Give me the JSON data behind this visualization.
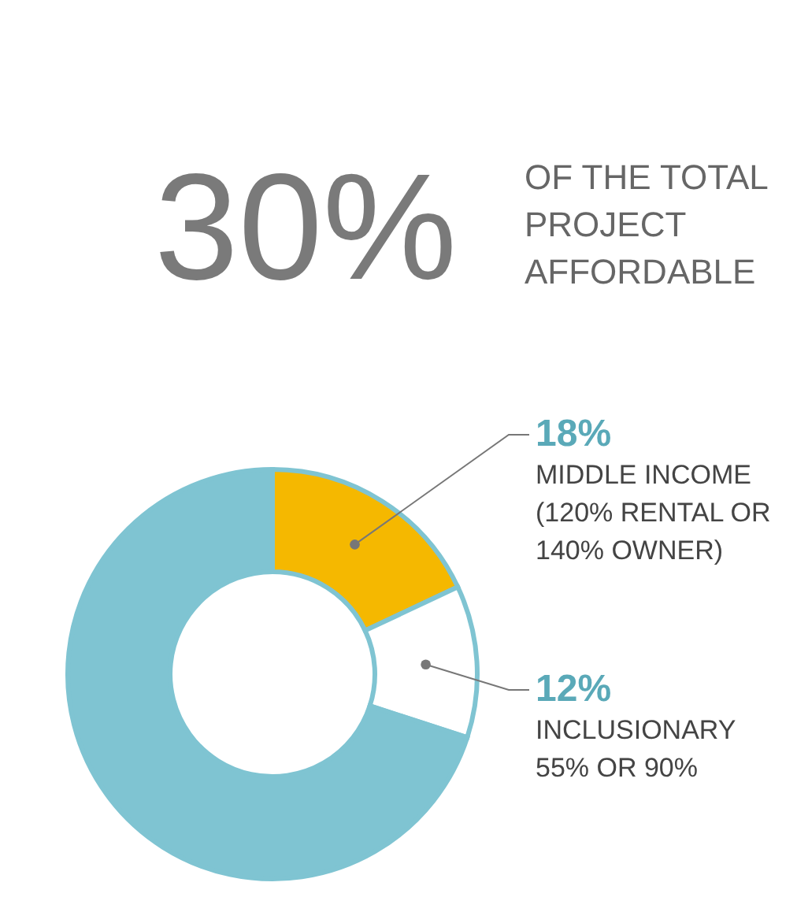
{
  "chart_data": {
    "type": "donut",
    "title": "30%",
    "subtitle": "OF THE TOTAL PROJECT AFFORDABLE",
    "categories": [
      "MIDDLE INCOME (120% RENTAL OR 140% OWNER)",
      "INCLUSIONARY 55% OR 90%",
      null
    ],
    "values": [
      18,
      12,
      70
    ],
    "colors": [
      "#f5b800",
      "#ffffff",
      "#7fc4d2"
    ],
    "value_labels": [
      "18%",
      "12%",
      null
    ]
  }
}
